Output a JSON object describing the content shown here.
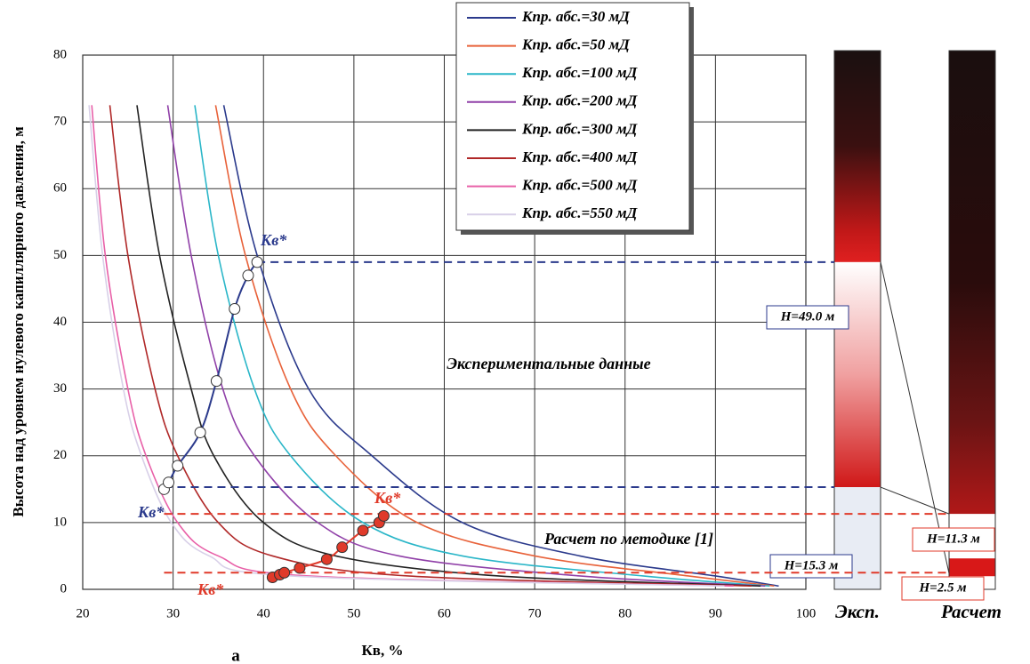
{
  "chart_data": {
    "type": "line",
    "y_label": "Высота над уровнем нулевого капиллярного давления, м",
    "x_label": "Кв, %",
    "panel_label": "а",
    "xlim": [
      20,
      100
    ],
    "xticks": [
      20,
      30,
      40,
      50,
      60,
      70,
      80,
      90,
      100
    ],
    "ylim": [
      0,
      80
    ],
    "yticks": [
      0,
      10,
      20,
      30,
      40,
      50,
      60,
      70,
      80
    ],
    "grid": true,
    "series": [
      {
        "name": "Кпр. абс.=30 мД",
        "color": "#2b3a8c",
        "x": [
          35.6,
          39.3,
          45,
          52,
          62,
          75,
          90,
          97
        ],
        "values": [
          72.5,
          50,
          30,
          20,
          10,
          5,
          2,
          0.5
        ]
      },
      {
        "name": "Кпр. абс.=50 мД",
        "color": "#e8623a",
        "x": [
          34.7,
          38,
          43,
          48,
          57,
          70,
          87,
          96.5
        ],
        "values": [
          72.5,
          50,
          30,
          20,
          10,
          5,
          2,
          0.5
        ]
      },
      {
        "name": "Кпр. абс.=100 мД",
        "color": "#2ab6c8",
        "x": [
          32.4,
          35,
          39,
          43,
          51,
          62,
          82,
          96
        ],
        "values": [
          72.5,
          50,
          30,
          20,
          10,
          5,
          2,
          0.5
        ]
      },
      {
        "name": "Кпр. абс.=200 мД",
        "color": "#9040a8",
        "x": [
          29.4,
          32,
          35.5,
          39,
          46,
          55,
          75,
          95.5
        ],
        "values": [
          72.5,
          50,
          30,
          20,
          10,
          5,
          2,
          0.5
        ]
      },
      {
        "name": "Кпр. абс.=300 мД",
        "color": "#222222",
        "x": [
          26,
          28.5,
          32,
          34.5,
          40,
          48,
          66,
          95
        ],
        "values": [
          72.5,
          50,
          30,
          20,
          10,
          5,
          2,
          0.5
        ]
      },
      {
        "name": "Кпр. абс.=400 мД",
        "color": "#b02828",
        "x": [
          23,
          25,
          28,
          30.5,
          35,
          41,
          56,
          94
        ],
        "values": [
          72.5,
          50,
          30,
          20,
          10,
          5,
          2,
          0.5
        ]
      },
      {
        "name": "Кпр. абс.=500 мД",
        "color": "#e860a8",
        "x": [
          21,
          22.5,
          25,
          27,
          30.5,
          35,
          45,
          92
        ],
        "values": [
          72.5,
          50,
          30,
          20,
          10,
          5,
          2,
          0.5
        ]
      },
      {
        "name": "Кпр. абс.=550 мД",
        "color": "#d8d0e8",
        "x": [
          20.7,
          22.2,
          24.5,
          26.5,
          29.8,
          34,
          43,
          91
        ],
        "values": [
          72.5,
          50,
          30,
          20,
          10,
          5,
          2,
          0.5
        ]
      }
    ],
    "experimental": {
      "color": "#2b3a8c",
      "x": [
        29,
        29.5,
        30.5,
        33,
        34.8,
        36.8,
        38.3,
        39.3
      ],
      "values": [
        15,
        16,
        18.5,
        23.5,
        31.2,
        42,
        47,
        49
      ]
    },
    "calculated": {
      "color": "#e03a2a",
      "x": [
        41,
        41.8,
        42.3,
        44,
        47,
        48.7,
        51,
        52.8,
        53.3
      ],
      "values": [
        1.8,
        2.2,
        2.5,
        3.2,
        4.5,
        6.3,
        8.8,
        10,
        11
      ]
    },
    "levels": [
      {
        "text": "H=49.0 м",
        "value": 49.0,
        "color": "#2b3a8c"
      },
      {
        "text": "H=15.3 м",
        "value": 15.3,
        "color": "#2b3a8c"
      },
      {
        "text": "H=11.3 м",
        "value": 11.3,
        "color": "#e03a2a"
      },
      {
        "text": "H=2.5 м",
        "value": 2.5,
        "color": "#e03a2a"
      }
    ],
    "kv_labels": [
      "Кв*",
      "Кв*",
      "Кв*",
      "Кв*"
    ],
    "region_labels": [
      "Экспериментальные данные",
      "Расчет по методике [1]"
    ],
    "column_labels": [
      "Эксп.",
      "Расчет"
    ]
  }
}
